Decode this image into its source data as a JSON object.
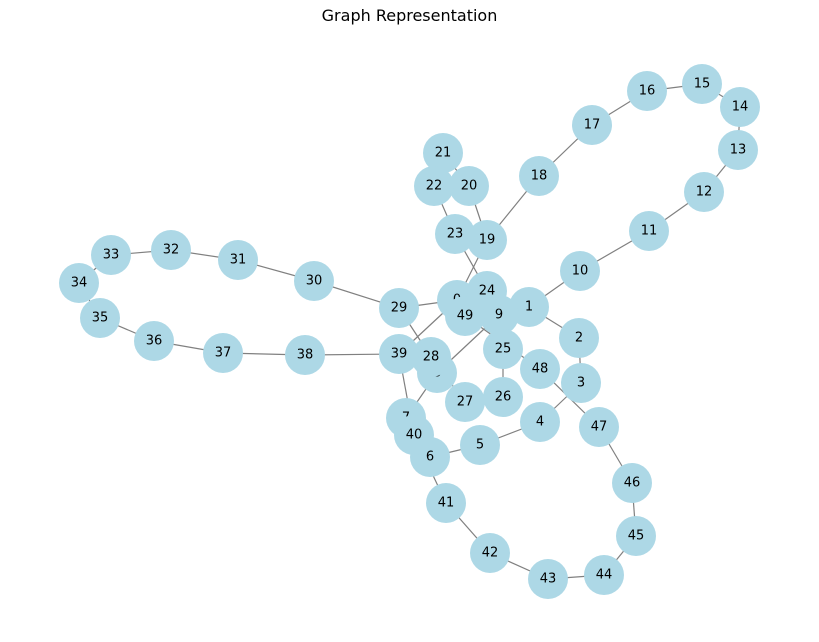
{
  "title": "Graph Representation",
  "colors": {
    "node": "#add8e6",
    "edge": "#808080",
    "label": "#000000"
  },
  "nodes": [
    "0",
    "1",
    "2",
    "3",
    "4",
    "5",
    "6",
    "7",
    "8",
    "9",
    "10",
    "11",
    "12",
    "13",
    "14",
    "15",
    "16",
    "17",
    "18",
    "19",
    "20",
    "21",
    "22",
    "23",
    "24",
    "25",
    "26",
    "27",
    "28",
    "29",
    "30",
    "31",
    "32",
    "33",
    "34",
    "35",
    "36",
    "37",
    "38",
    "39",
    "40",
    "41",
    "42",
    "43",
    "44",
    "45",
    "46",
    "47",
    "48",
    "49"
  ],
  "edges": [
    [
      "0",
      "1"
    ],
    [
      "1",
      "2"
    ],
    [
      "2",
      "3"
    ],
    [
      "3",
      "4"
    ],
    [
      "4",
      "5"
    ],
    [
      "5",
      "6"
    ],
    [
      "6",
      "7"
    ],
    [
      "7",
      "8"
    ],
    [
      "8",
      "9"
    ],
    [
      "9",
      "0"
    ],
    [
      "1",
      "10"
    ],
    [
      "10",
      "11"
    ],
    [
      "11",
      "12"
    ],
    [
      "12",
      "13"
    ],
    [
      "13",
      "14"
    ],
    [
      "14",
      "15"
    ],
    [
      "15",
      "16"
    ],
    [
      "16",
      "17"
    ],
    [
      "17",
      "18"
    ],
    [
      "18",
      "19"
    ],
    [
      "19",
      "0"
    ],
    [
      "19",
      "20"
    ],
    [
      "20",
      "21"
    ],
    [
      "21",
      "22"
    ],
    [
      "22",
      "23"
    ],
    [
      "23",
      "24"
    ],
    [
      "24",
      "25"
    ],
    [
      "25",
      "26"
    ],
    [
      "26",
      "27"
    ],
    [
      "27",
      "28"
    ],
    [
      "28",
      "29"
    ],
    [
      "29",
      "0"
    ],
    [
      "29",
      "30"
    ],
    [
      "30",
      "31"
    ],
    [
      "31",
      "32"
    ],
    [
      "32",
      "33"
    ],
    [
      "33",
      "34"
    ],
    [
      "34",
      "35"
    ],
    [
      "35",
      "36"
    ],
    [
      "36",
      "37"
    ],
    [
      "37",
      "38"
    ],
    [
      "38",
      "39"
    ],
    [
      "39",
      "0"
    ],
    [
      "39",
      "40"
    ],
    [
      "40",
      "41"
    ],
    [
      "41",
      "42"
    ],
    [
      "42",
      "43"
    ],
    [
      "43",
      "44"
    ],
    [
      "44",
      "45"
    ],
    [
      "45",
      "46"
    ],
    [
      "46",
      "47"
    ],
    [
      "47",
      "48"
    ],
    [
      "48",
      "49"
    ],
    [
      "49",
      "0"
    ]
  ]
}
